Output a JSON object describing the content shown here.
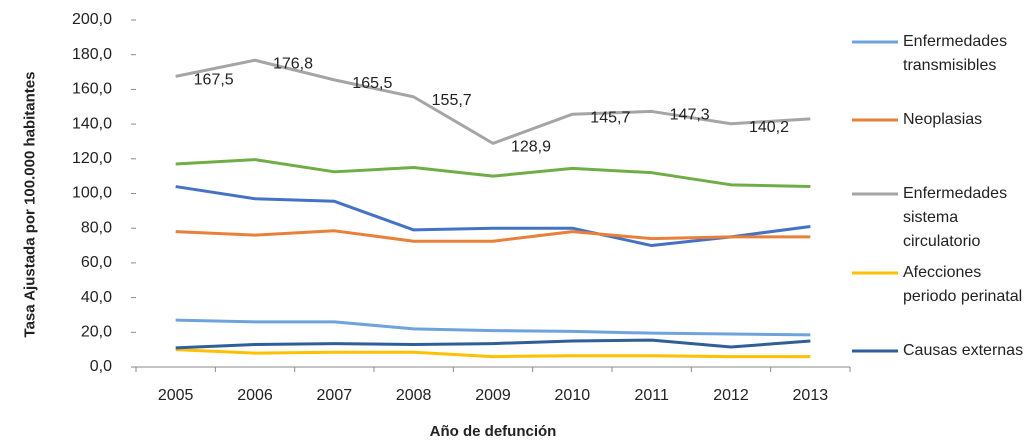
{
  "chart_data": {
    "type": "line",
    "x_label": "Año de defunción",
    "y_label": "Tasa Ajustada por 100.000 habitantes",
    "categories": [
      "2005",
      "2006",
      "2007",
      "2008",
      "2009",
      "2010",
      "2011",
      "2012",
      "2013"
    ],
    "ylim": [
      0,
      200
    ],
    "yticks": [
      {
        "value": 0,
        "label": "0,0"
      },
      {
        "value": 20,
        "label": "20,0"
      },
      {
        "value": 40,
        "label": "40,0"
      },
      {
        "value": 60,
        "label": "60,0"
      },
      {
        "value": 80,
        "label": "80,0"
      },
      {
        "value": 100,
        "label": "100,0"
      },
      {
        "value": 120,
        "label": "120,0"
      },
      {
        "value": 140,
        "label": "140,0"
      },
      {
        "value": 160,
        "label": "160,0"
      },
      {
        "value": 180,
        "label": "180,0"
      },
      {
        "value": 200,
        "label": "200,0"
      }
    ],
    "grid": false,
    "legend": "right",
    "series": [
      {
        "name": "Enfermedades transmisibles",
        "color": "#6fa3dc",
        "values": [
          27,
          26,
          26,
          22,
          21,
          20.5,
          19.5,
          19,
          18.5
        ]
      },
      {
        "name": "Neoplasias",
        "color": "#e8803a",
        "values": [
          78,
          76,
          78.5,
          72.5,
          72.5,
          78,
          74,
          75,
          75
        ]
      },
      {
        "name": "Enfermedades sistema circulatorio",
        "color": "#a5a5a5",
        "values": [
          167.5,
          176.8,
          165.5,
          155.7,
          128.9,
          145.7,
          147.3,
          140.2,
          143
        ],
        "value_labels": [
          "167,5",
          "176,8",
          "165,5",
          "155,7",
          "128,9",
          "145,7",
          "147,3",
          "140,2",
          null
        ]
      },
      {
        "name": "Afecciones periodo perinatal",
        "color": "#ffc000",
        "values": [
          10,
          8,
          8.5,
          8.5,
          6,
          6.5,
          6.5,
          6,
          6
        ]
      },
      {
        "name": "Causas externas",
        "color": "#2f5f98",
        "values": [
          11,
          13,
          13.5,
          13,
          13.5,
          15,
          15.5,
          11.5,
          15
        ]
      },
      {
        "color": "#70ad47",
        "values": [
          117,
          119.5,
          112.5,
          115,
          110,
          114.5,
          112,
          105,
          104
        ]
      },
      {
        "color": "#4472c4",
        "values": [
          104,
          97,
          95.5,
          79,
          80,
          80,
          70,
          75,
          81
        ]
      }
    ]
  }
}
